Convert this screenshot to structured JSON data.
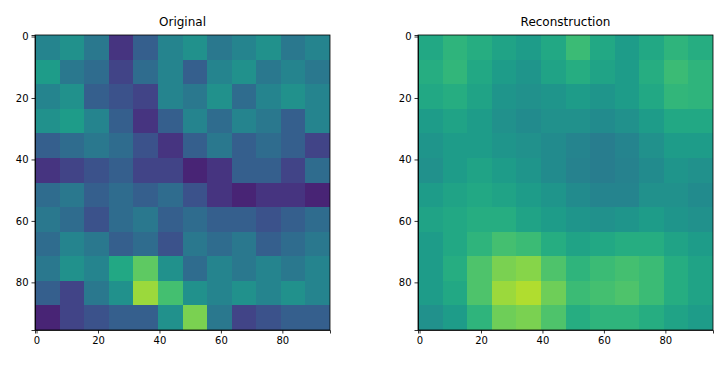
{
  "chart_data": [
    {
      "type": "heatmap",
      "title": "Original",
      "color": "viridis",
      "zlim": [
        0,
        1
      ],
      "xlim": [
        -0.5,
        95.5
      ],
      "ylim": [
        95.5,
        -0.5
      ],
      "xticks": [
        0,
        20,
        40,
        60,
        80
      ],
      "yticks": [
        0,
        20,
        40,
        60,
        80
      ],
      "cells": [
        [
          0.45,
          0.5,
          0.4,
          0.15,
          0.3,
          0.45,
          0.5,
          0.4,
          0.45,
          0.5,
          0.4,
          0.45
        ],
        [
          0.55,
          0.4,
          0.35,
          0.2,
          0.35,
          0.45,
          0.3,
          0.45,
          0.5,
          0.4,
          0.45,
          0.4
        ],
        [
          0.45,
          0.5,
          0.3,
          0.25,
          0.2,
          0.45,
          0.4,
          0.5,
          0.35,
          0.45,
          0.5,
          0.45
        ],
        [
          0.5,
          0.55,
          0.45,
          0.3,
          0.15,
          0.3,
          0.45,
          0.35,
          0.45,
          0.4,
          0.3,
          0.45
        ],
        [
          0.3,
          0.35,
          0.4,
          0.35,
          0.25,
          0.15,
          0.3,
          0.4,
          0.3,
          0.35,
          0.3,
          0.2
        ],
        [
          0.15,
          0.2,
          0.25,
          0.3,
          0.2,
          0.2,
          0.1,
          0.15,
          0.3,
          0.3,
          0.2,
          0.35
        ],
        [
          0.35,
          0.4,
          0.3,
          0.35,
          0.3,
          0.35,
          0.25,
          0.15,
          0.1,
          0.15,
          0.15,
          0.1
        ],
        [
          0.4,
          0.35,
          0.25,
          0.35,
          0.4,
          0.3,
          0.35,
          0.3,
          0.3,
          0.25,
          0.3,
          0.35
        ],
        [
          0.35,
          0.45,
          0.4,
          0.3,
          0.35,
          0.25,
          0.4,
          0.35,
          0.4,
          0.3,
          0.35,
          0.4
        ],
        [
          0.4,
          0.5,
          0.45,
          0.6,
          0.75,
          0.5,
          0.35,
          0.45,
          0.4,
          0.45,
          0.4,
          0.45
        ],
        [
          0.3,
          0.2,
          0.4,
          0.5,
          0.85,
          0.7,
          0.5,
          0.45,
          0.5,
          0.45,
          0.5,
          0.45
        ],
        [
          0.1,
          0.2,
          0.25,
          0.3,
          0.3,
          0.5,
          0.8,
          0.4,
          0.2,
          0.25,
          0.3,
          0.3
        ]
      ]
    },
    {
      "type": "heatmap",
      "title": "Reconstruction",
      "color": "viridis",
      "zlim": [
        0,
        1
      ],
      "xlim": [
        -0.5,
        95.5
      ],
      "ylim": [
        95.5,
        -0.5
      ],
      "xticks": [
        0,
        20,
        40,
        60,
        80
      ],
      "yticks": [
        0,
        20,
        40,
        60,
        80
      ],
      "cells": [
        [
          0.6,
          0.65,
          0.62,
          0.58,
          0.55,
          0.6,
          0.68,
          0.6,
          0.55,
          0.6,
          0.65,
          0.62
        ],
        [
          0.62,
          0.66,
          0.6,
          0.55,
          0.52,
          0.58,
          0.62,
          0.58,
          0.55,
          0.62,
          0.68,
          0.65
        ],
        [
          0.6,
          0.62,
          0.58,
          0.52,
          0.5,
          0.52,
          0.55,
          0.52,
          0.55,
          0.6,
          0.66,
          0.65
        ],
        [
          0.55,
          0.58,
          0.55,
          0.5,
          0.48,
          0.5,
          0.5,
          0.48,
          0.5,
          0.55,
          0.6,
          0.6
        ],
        [
          0.52,
          0.55,
          0.55,
          0.52,
          0.5,
          0.48,
          0.45,
          0.42,
          0.45,
          0.5,
          0.55,
          0.55
        ],
        [
          0.5,
          0.55,
          0.58,
          0.55,
          0.52,
          0.48,
          0.44,
          0.42,
          0.44,
          0.48,
          0.52,
          0.5
        ],
        [
          0.55,
          0.58,
          0.6,
          0.58,
          0.55,
          0.52,
          0.48,
          0.45,
          0.45,
          0.5,
          0.5,
          0.48
        ],
        [
          0.58,
          0.6,
          0.62,
          0.62,
          0.58,
          0.55,
          0.52,
          0.5,
          0.52,
          0.55,
          0.52,
          0.5
        ],
        [
          0.55,
          0.6,
          0.65,
          0.7,
          0.68,
          0.62,
          0.58,
          0.6,
          0.62,
          0.62,
          0.58,
          0.55
        ],
        [
          0.55,
          0.62,
          0.72,
          0.8,
          0.82,
          0.72,
          0.65,
          0.68,
          0.7,
          0.68,
          0.62,
          0.58
        ],
        [
          0.55,
          0.6,
          0.72,
          0.85,
          0.88,
          0.78,
          0.68,
          0.7,
          0.72,
          0.68,
          0.62,
          0.58
        ],
        [
          0.5,
          0.55,
          0.65,
          0.78,
          0.8,
          0.72,
          0.62,
          0.65,
          0.65,
          0.62,
          0.58,
          0.55
        ]
      ]
    }
  ]
}
